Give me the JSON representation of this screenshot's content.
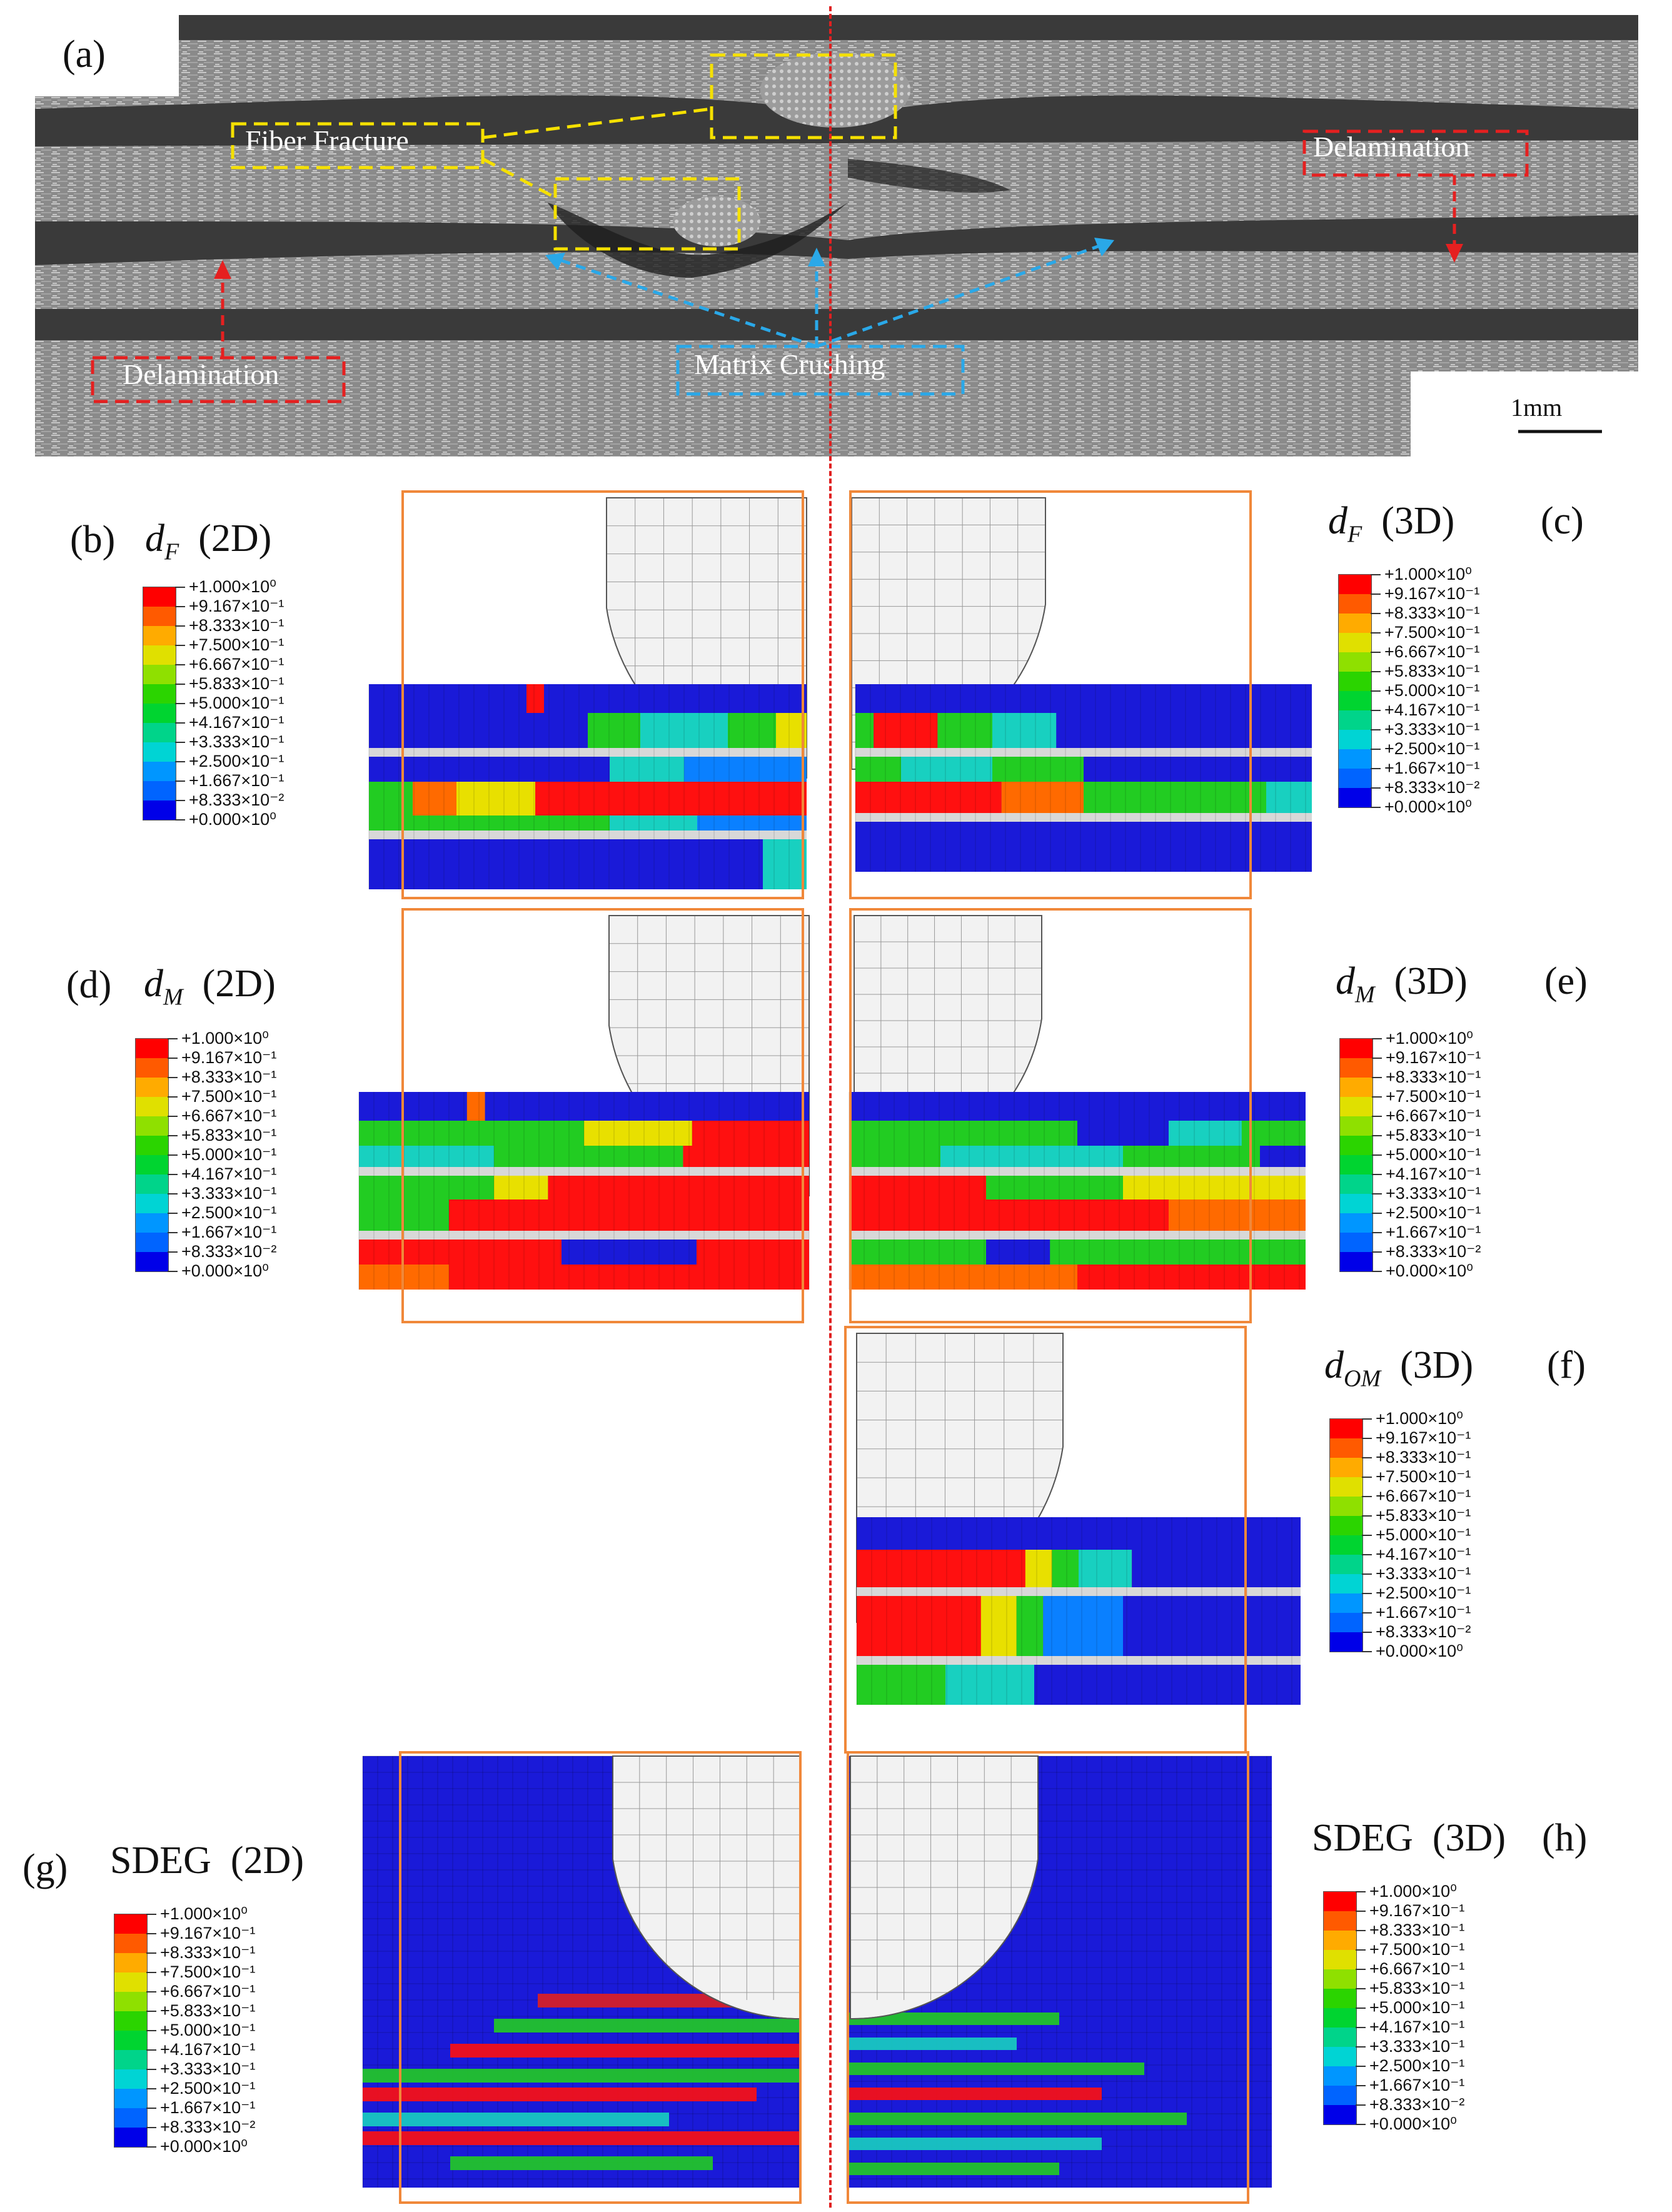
{
  "figure": {
    "panels": {
      "a": "(a)",
      "b": "(b)",
      "c": "(c)",
      "d": "(d)",
      "e": "(e)",
      "f": "(f)",
      "g": "(g)",
      "h": "(h)"
    },
    "micrograph": {
      "fiber_fracture": "Fiber Fracture",
      "delamination_right": "Delamination",
      "delamination_left": "Delamination",
      "matrix_crushing": "Matrix Crushing",
      "scale_bar": "1mm"
    },
    "titles": {
      "b": {
        "sym": "d",
        "sub": "F",
        "dim": "(2D)"
      },
      "c": {
        "sym": "d",
        "sub": "F",
        "dim": "(3D)"
      },
      "d": {
        "sym": "d",
        "sub": "M",
        "dim": "(2D)"
      },
      "e": {
        "sym": "d",
        "sub": "M",
        "dim": "(3D)"
      },
      "f": {
        "sym": "d",
        "sub": "OM",
        "dim": "(3D)"
      },
      "g": {
        "sym": "SDEG",
        "dim": "(2D)"
      },
      "h": {
        "sym": "SDEG",
        "dim": "(3D)"
      }
    },
    "legend": {
      "labels": [
        "+1.000×10⁰",
        "+9.167×10⁻¹",
        "+8.333×10⁻¹",
        "+7.500×10⁻¹",
        "+6.667×10⁻¹",
        "+5.833×10⁻¹",
        "+5.000×10⁻¹",
        "+4.167×10⁻¹",
        "+3.333×10⁻¹",
        "+2.500×10⁻¹",
        "+1.667×10⁻¹",
        "+8.333×10⁻²",
        "+0.000×10⁰"
      ],
      "colors": [
        "#ff0000",
        "#ff5a00",
        "#ffab00",
        "#e0e000",
        "#8fe000",
        "#2bd400",
        "#00d430",
        "#00d48a",
        "#00d4d4",
        "#0096ff",
        "#0064ff",
        "#0000e8"
      ]
    }
  }
}
